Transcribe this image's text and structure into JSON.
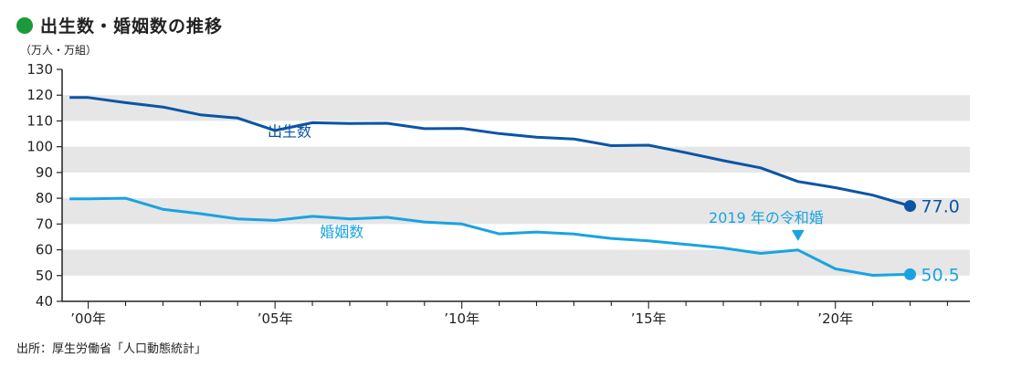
{
  "colors": {
    "title_dot": "#1a9a3a",
    "births": "#0a55a5",
    "marriages": "#1aa3e0",
    "band": "#e6e6e6",
    "axis": "#222222"
  },
  "chart_data": {
    "type": "line",
    "title": "出生数・婚姻数の推移",
    "ylabel": "（万人・万組）",
    "ylim": [
      40,
      130
    ],
    "yticks": [
      40,
      50,
      60,
      70,
      80,
      90,
      100,
      110,
      120,
      130
    ],
    "xlim": [
      1999.3,
      2023.6
    ],
    "x_major_ticks": [
      2000,
      2005,
      2010,
      2015,
      2020
    ],
    "x_tick_labels": [
      "’00年",
      "’05年",
      "’10年",
      "’15年",
      "’20年"
    ],
    "grid": "alternating horizontal bands",
    "series": [
      {
        "name": "出生数",
        "x": [
          1999.5,
          2000,
          2001,
          2002,
          2003,
          2004,
          2005,
          2006,
          2007,
          2008,
          2009,
          2010,
          2011,
          2012,
          2013,
          2014,
          2015,
          2016,
          2017,
          2018,
          2019,
          2020,
          2021,
          2022
        ],
        "values": [
          119.1,
          119.1,
          117.1,
          115.4,
          112.4,
          111.1,
          106.3,
          109.3,
          109.0,
          109.1,
          107.0,
          107.1,
          105.1,
          103.7,
          103.0,
          100.4,
          100.6,
          97.7,
          94.6,
          91.8,
          86.5,
          84.1,
          81.2,
          77.0
        ],
        "end_label": "77.0"
      },
      {
        "name": "婚姻数",
        "x": [
          1999.5,
          2000,
          2001,
          2002,
          2003,
          2004,
          2005,
          2006,
          2007,
          2008,
          2009,
          2010,
          2011,
          2012,
          2013,
          2014,
          2015,
          2016,
          2017,
          2018,
          2019,
          2020,
          2021,
          2022
        ],
        "values": [
          79.8,
          79.8,
          80.0,
          75.7,
          74.0,
          72.0,
          71.4,
          73.0,
          72.0,
          72.6,
          70.8,
          70.0,
          66.2,
          66.9,
          66.1,
          64.4,
          63.5,
          62.1,
          60.7,
          58.6,
          59.9,
          52.6,
          50.1,
          50.5
        ],
        "end_label": "50.5"
      }
    ],
    "annotation": {
      "text": "2019 年の令和婚",
      "x": 2019,
      "series": "婚姻数"
    }
  },
  "source": "出所：厚生労働省「人口動態統計」"
}
